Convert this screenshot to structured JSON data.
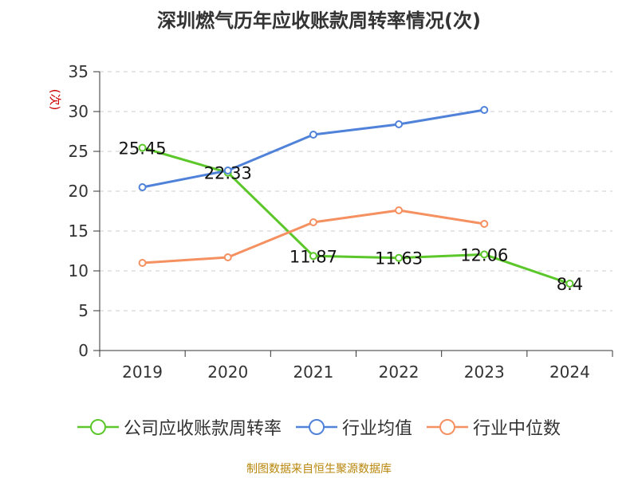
{
  "title": "深圳燃气历年应收账款周转率情况(次)",
  "source_note": "制图数据来自恒生聚源数据库",
  "chart_data": {
    "type": "line",
    "title": "深圳燃气历年应收账款周转率情况(次)",
    "ylabel": "(次)",
    "xlabel": "",
    "categories": [
      "2019",
      "2020",
      "2021",
      "2022",
      "2023",
      "2024"
    ],
    "ylim": [
      0,
      35
    ],
    "yticks": [
      0,
      5,
      10,
      15,
      20,
      25,
      30,
      35
    ],
    "grid": true,
    "legend_position": "bottom",
    "series": [
      {
        "name": "公司应收账款周转率",
        "color": "#5cc72a",
        "values": [
          25.45,
          22.33,
          11.87,
          11.63,
          12.06,
          8.4
        ],
        "labels": [
          "25.45",
          "22.33",
          "11.87",
          "11.63",
          "12.06",
          "8.4"
        ]
      },
      {
        "name": "行业均值",
        "color": "#4f82d8",
        "values": [
          20.5,
          22.6,
          27.1,
          28.4,
          30.2,
          null
        ]
      },
      {
        "name": "行业中位数",
        "color": "#f59060",
        "values": [
          11.0,
          11.7,
          16.1,
          17.6,
          15.9,
          null
        ]
      }
    ]
  }
}
